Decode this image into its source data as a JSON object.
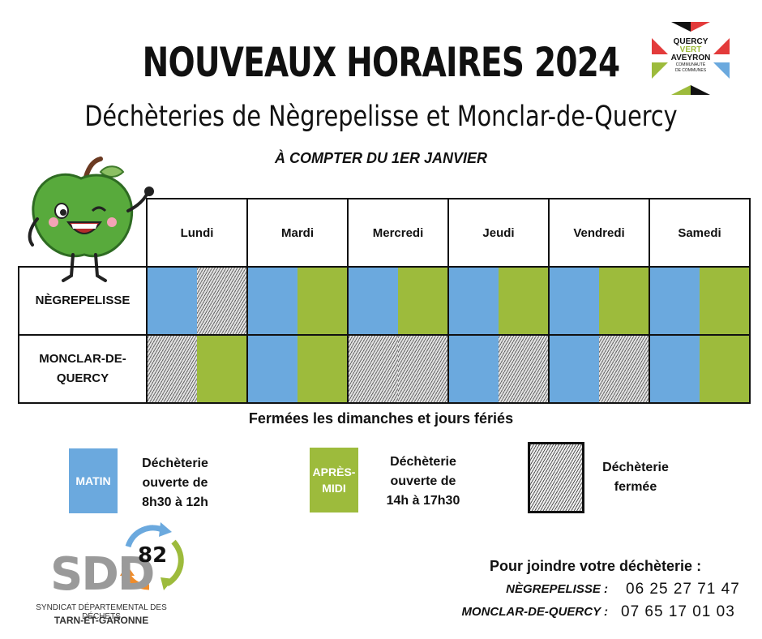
{
  "header": {
    "title": "NOUVEAUX HORAIRES 2024",
    "subtitle": "Déchèteries de Nègrepelisse et Monclar-de-Quercy",
    "since": "À COMPTER DU 1ER JANVIER"
  },
  "logo_top": {
    "lines": [
      "QUERCY",
      "VERT",
      "AVEYRON",
      "COMMUNAUTÉ",
      "DE COMMUNES"
    ]
  },
  "schedule": {
    "days": [
      "Lundi",
      "Mardi",
      "Mercredi",
      "Jeudi",
      "Vendredi",
      "Samedi"
    ],
    "rows": [
      {
        "name": "NÈGREPELISSE",
        "slots": [
          [
            "open",
            "closed"
          ],
          [
            "open",
            "open"
          ],
          [
            "open",
            "open"
          ],
          [
            "open",
            "open"
          ],
          [
            "open",
            "open"
          ],
          [
            "open",
            "open"
          ]
        ]
      },
      {
        "name_line1": "MONCLAR-DE-",
        "name_line2": "QUERCY",
        "slots": [
          [
            "closed",
            "open"
          ],
          [
            "open",
            "open"
          ],
          [
            "closed",
            "closed"
          ],
          [
            "open",
            "closed"
          ],
          [
            "open",
            "closed"
          ],
          [
            "open",
            "open"
          ]
        ]
      }
    ]
  },
  "closed_note": "Fermées les dimanches et jours fériés",
  "legend": {
    "morning": {
      "box_label": "MATIN",
      "line1": "Déchèterie",
      "line2": "ouverte de",
      "line3": "8h30 à 12h",
      "color": "#6ba9de"
    },
    "afternoon": {
      "box_label_1": "APRÈS-",
      "box_label_2": "MIDI",
      "line1": "Déchèterie",
      "line2": "ouverte de",
      "line3": "14h à 17h30",
      "color": "#9dbb3c"
    },
    "closed": {
      "line1": "Déchèterie",
      "line2": "fermée"
    }
  },
  "footer_logo": {
    "mark": "SDD",
    "number": "82",
    "line1": "SYNDICAT DÉPARTEMENTAL DES DÉCHETS",
    "line2": "TARN-ET-GARONNE"
  },
  "contact": {
    "title": "Pour joindre votre déchèterie :",
    "items": [
      {
        "label": "NÈGREPELISSE :",
        "phone": "06 25 27 71 47"
      },
      {
        "label": "MONCLAR-DE-QUERCY :",
        "phone": "07 65 17 01 03"
      }
    ]
  },
  "colors": {
    "morning": "#6ba9de",
    "afternoon": "#9dbb3c"
  },
  "icons": [
    "apple-mascot-icon",
    "qva-logo-icon",
    "recycle-arrows-icon"
  ]
}
